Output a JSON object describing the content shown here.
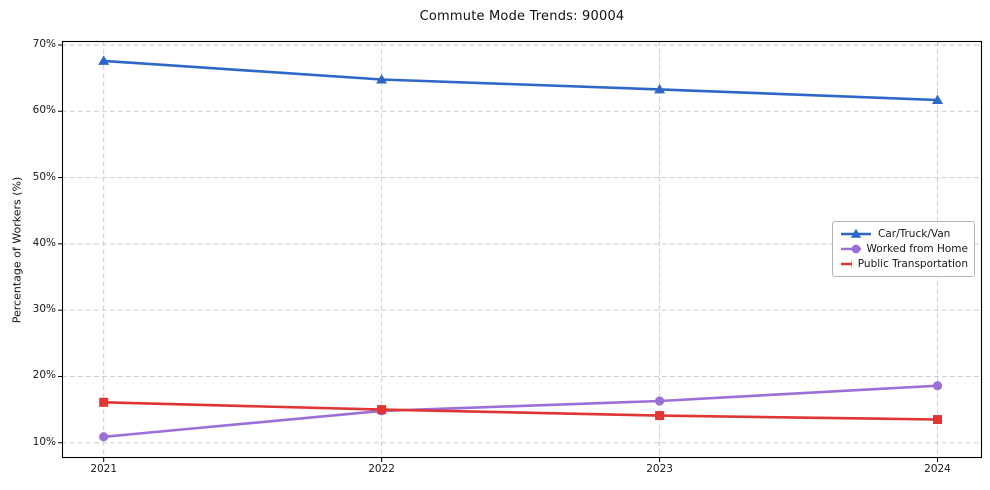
{
  "chart_data": {
    "type": "line",
    "title": "Commute Mode Trends: 90004",
    "xlabel": "",
    "ylabel": "Percentage of Workers (%)",
    "x": [
      2021,
      2022,
      2023,
      2024
    ],
    "x_tick_labels": [
      "2021",
      "2022",
      "2023",
      "2024"
    ],
    "y_ticks": [
      10,
      20,
      30,
      40,
      50,
      60,
      70
    ],
    "y_tick_labels": [
      "10%",
      "20%",
      "30%",
      "40%",
      "50%",
      "60%",
      "70%"
    ],
    "xlim": [
      2020.85,
      2024.16
    ],
    "ylim": [
      7.7,
      70.6
    ],
    "grid": "both-dashed",
    "legend_position": "center-right",
    "series": [
      {
        "name": "Car/Truck/Van",
        "color": "#2d68c8",
        "marker": "triangle",
        "values": [
          67.6,
          64.8,
          63.3,
          61.7
        ]
      },
      {
        "name": "Worked from Home",
        "color": "#9b6fd9",
        "marker": "circle",
        "values": [
          10.9,
          14.8,
          16.3,
          18.6
        ]
      },
      {
        "name": "Public Transportation",
        "color": "#e03535",
        "marker": "square",
        "values": [
          16.1,
          15.0,
          14.1,
          13.5
        ]
      }
    ]
  }
}
